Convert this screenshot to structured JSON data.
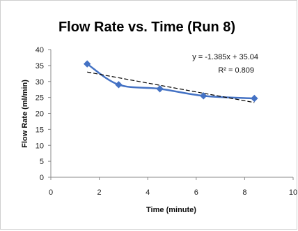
{
  "chart_data": {
    "type": "scatter",
    "title": "Flow Rate vs. Time (Run 8)",
    "xlabel": "Time (minute)",
    "ylabel": "Flow Rate (ml/min)",
    "xlim": [
      0,
      10
    ],
    "ylim": [
      0,
      40
    ],
    "x_ticks": [
      0,
      2,
      4,
      6,
      8,
      10
    ],
    "y_ticks": [
      0,
      5,
      10,
      15,
      20,
      25,
      30,
      35,
      40
    ],
    "grid": false,
    "legend": "none",
    "series": [
      {
        "x": [
          1.5,
          2.8,
          4.5,
          6.3,
          8.4
        ],
        "y": [
          35.5,
          29.0,
          27.7,
          25.5,
          24.7
        ],
        "marker": "diamond",
        "line": "smoothed",
        "color": "#4472c4"
      }
    ],
    "trendline": {
      "type": "linear",
      "slope": -1.385,
      "intercept": 35.04,
      "x_range": [
        1.5,
        8.4
      ],
      "style": "dashed",
      "color": "#000000"
    },
    "annotations": {
      "equation": "y = -1.385x + 35.04",
      "r_squared": "R² = 0.809"
    }
  }
}
